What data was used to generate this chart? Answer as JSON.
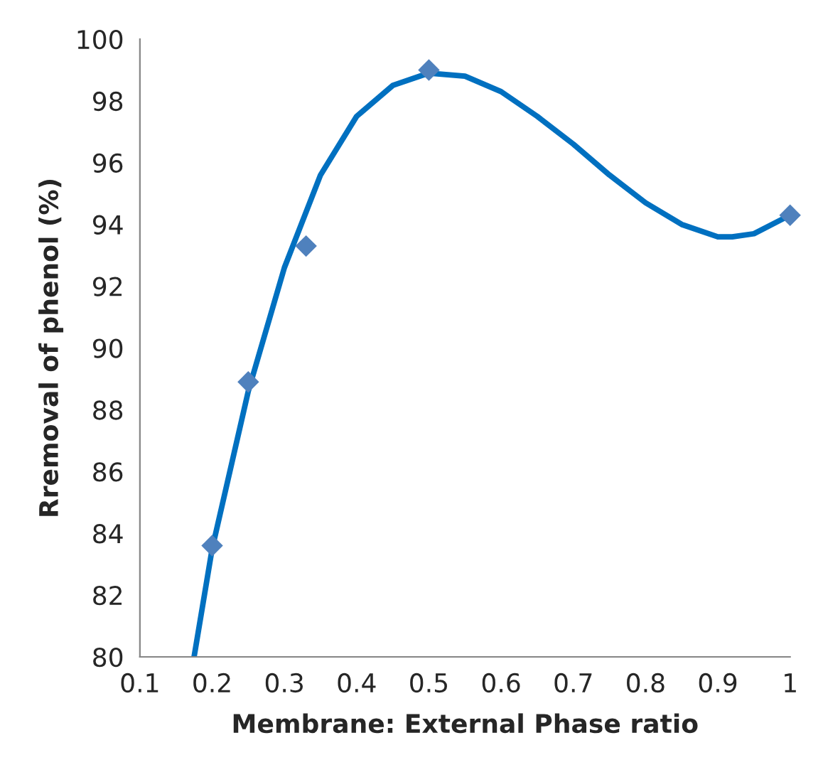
{
  "chart_data": {
    "type": "scatter",
    "xlabel": "Membrane: External Phase ratio",
    "ylabel": "Rremoval of phenol (%)",
    "xlim": [
      0.1,
      1
    ],
    "xticks": [
      0.1,
      0.2,
      0.3,
      0.4,
      0.5,
      0.6,
      0.7,
      0.8,
      0.9,
      1
    ],
    "ylim": [
      80,
      100
    ],
    "yticks": [
      80,
      82,
      84,
      86,
      88,
      90,
      92,
      94,
      96,
      98,
      100
    ],
    "grid": false,
    "series": [
      {
        "color": "#4f81bd",
        "marker": "diamond",
        "x": [
          0.2,
          0.25,
          0.33,
          0.5,
          1
        ],
        "values": [
          83.6,
          88.9,
          93.3,
          99.0,
          94.3
        ]
      },
      {
        "type": "line",
        "color": "#0070c0",
        "marker": "none",
        "line_style": "solid",
        "x": [
          0.175,
          0.2,
          0.25,
          0.3,
          0.35,
          0.4,
          0.45,
          0.5,
          0.55,
          0.6,
          0.65,
          0.7,
          0.75,
          0.8,
          0.85,
          0.9,
          0.92,
          0.95,
          1.0
        ],
        "values": [
          80,
          83.5,
          88.6,
          92.6,
          95.6,
          97.5,
          98.5,
          98.9,
          98.8,
          98.3,
          97.5,
          96.6,
          95.6,
          94.7,
          94.0,
          93.6,
          93.6,
          93.7,
          94.3
        ]
      }
    ]
  }
}
